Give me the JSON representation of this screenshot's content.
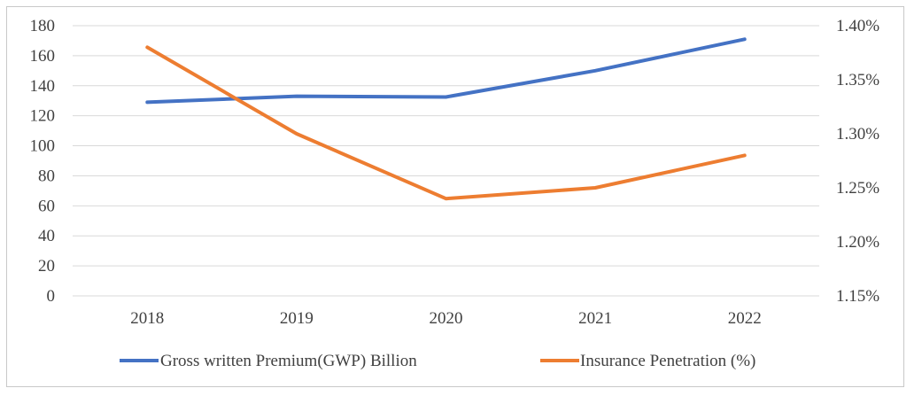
{
  "chart_data": {
    "type": "line",
    "categories": [
      "2018",
      "2019",
      "2020",
      "2021",
      "2022"
    ],
    "series": [
      {
        "name": "Gross written Premium(GWP)  Billion",
        "axis": "left",
        "color": "#4472C4",
        "values": [
          129,
          133,
          132.5,
          150,
          171
        ]
      },
      {
        "name": "Insurance Penetration (%)",
        "axis": "right",
        "color": "#ED7D31",
        "values": [
          1.38,
          1.3,
          1.24,
          1.25,
          1.28
        ]
      }
    ],
    "y_left": {
      "min": 0,
      "max": 180,
      "ticks": [
        "0",
        "20",
        "40",
        "60",
        "80",
        "100",
        "120",
        "140",
        "160",
        "180"
      ]
    },
    "y_right": {
      "min": 1.15,
      "max": 1.4,
      "ticks": [
        "1.15%",
        "1.20%",
        "1.25%",
        "1.30%",
        "1.35%",
        "1.40%"
      ]
    },
    "grid": true,
    "gridColor": "#d9d9d9",
    "legend": "bottom"
  }
}
